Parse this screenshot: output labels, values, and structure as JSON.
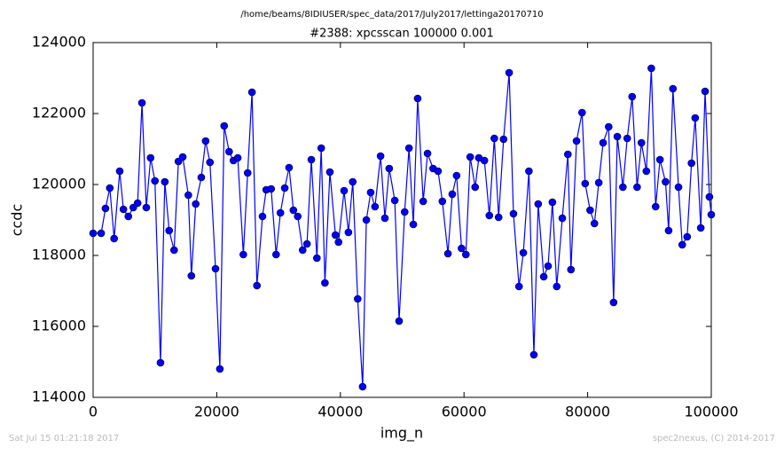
{
  "chart_data": {
    "type": "line",
    "suptitle": "/home/beams/8IDIUSER/spec_data/2017/July2017/lettinga20170710",
    "title": "#2388: xpcsscan 100000 0.001",
    "xlabel": "img_n",
    "ylabel": "ccdc",
    "footer_left": "Sat Jul 15 01:21:18 2017",
    "footer_right": "spec2nexus, (C) 2014-2017",
    "color": "#0000ff",
    "marker": true,
    "x": [
      0,
      1300,
      2000,
      2700,
      3400,
      4300,
      4900,
      5700,
      6500,
      7200,
      7900,
      8600,
      9300,
      10000,
      10900,
      11600,
      12300,
      13100,
      13800,
      14500,
      15400,
      15900,
      16600,
      17500,
      18200,
      18900,
      19800,
      20500,
      21200,
      22000,
      22700,
      23400,
      24300,
      25000,
      25700,
      26500,
      27400,
      28000,
      28800,
      29600,
      30300,
      31000,
      31700,
      32400,
      33100,
      33900,
      34600,
      35300,
      36200,
      36900,
      37500,
      38300,
      39200,
      39700,
      40600,
      41300,
      42000,
      42800,
      43600,
      44200,
      44900,
      45600,
      46500,
      47200,
      47900,
      48800,
      49500,
      50400,
      51100,
      51800,
      52500,
      53400,
      54100,
      55000,
      55800,
      56500,
      57400,
      58100,
      58800,
      59600,
      60300,
      61000,
      61800,
      62400,
      63300,
      64100,
      64900,
      65600,
      66400,
      67300,
      68000,
      68900,
      69600,
      70500,
      71300,
      72000,
      72900,
      73600,
      74300,
      75000,
      75900,
      76800,
      77300,
      78200,
      79100,
      79600,
      80400,
      81100,
      81800,
      82500,
      83400,
      84200,
      84800,
      85700,
      86400,
      87200,
      88000,
      88700,
      89500,
      90300,
      91000,
      91700,
      92600,
      93100,
      93800,
      94700,
      95300,
      96100,
      96800,
      97400,
      98300,
      99000,
      99700,
      100000
    ],
    "values": [
      118625,
      118625,
      119325,
      119900,
      118475,
      120375,
      119300,
      119100,
      119350,
      119475,
      122300,
      119350,
      120750,
      120100,
      114975,
      120075,
      118700,
      118150,
      120650,
      120775,
      119700,
      117425,
      119450,
      120200,
      121225,
      120625,
      117625,
      114800,
      121650,
      120925,
      120675,
      120750,
      118025,
      120325,
      122600,
      117150,
      119100,
      119850,
      119875,
      118025,
      119200,
      119900,
      120475,
      119275,
      119100,
      118150,
      118325,
      120700,
      117925,
      121025,
      117225,
      120350,
      118575,
      118375,
      119825,
      118650,
      120075,
      116775,
      114300,
      119000,
      119775,
      119375,
      120800,
      119050,
      120450,
      119550,
      116150,
      119225,
      121025,
      118875,
      122425,
      119525,
      120875,
      120450,
      120375,
      119525,
      118050,
      119725,
      120250,
      118200,
      118025,
      120775,
      119925,
      120750,
      120675,
      119125,
      121300,
      119075,
      121275,
      123150,
      119175,
      117125,
      118075,
      120375,
      115200,
      119450,
      117400,
      117700,
      119500,
      117125,
      119050,
      120850,
      117600,
      121225,
      122025,
      120025,
      119275,
      118900,
      120050,
      121175,
      121625,
      116675,
      121350,
      119925,
      121300,
      122475,
      119925,
      121175,
      120375,
      123275,
      119375,
      120700,
      120075,
      118700,
      122700,
      119925,
      118300,
      118525,
      120600,
      121875,
      118775,
      122625,
      119650,
      119150
    ],
    "xlim": [
      0,
      100000
    ],
    "xticks": [
      0,
      20000,
      40000,
      60000,
      80000,
      100000
    ],
    "ylim": [
      114000,
      124000
    ],
    "yticks": [
      114000,
      116000,
      118000,
      120000,
      122000,
      124000
    ],
    "grid": false
  }
}
